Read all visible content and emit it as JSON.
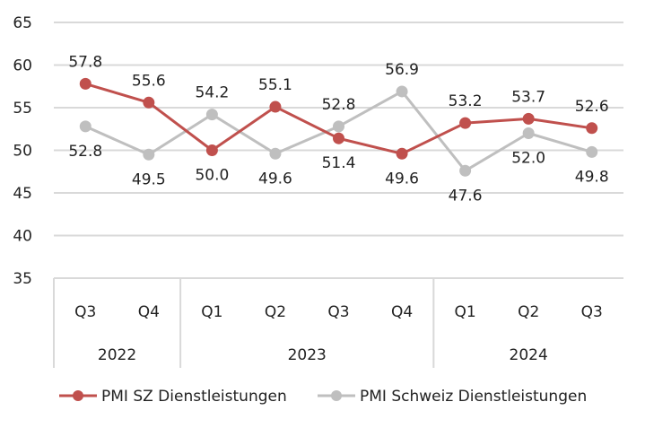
{
  "chart_data": {
    "type": "line",
    "title": "",
    "xlabel": "",
    "ylabel": "",
    "ylim": [
      35,
      65
    ],
    "yticks": [
      35,
      40,
      45,
      50,
      55,
      60,
      65
    ],
    "grid": true,
    "categories": [
      "Q3",
      "Q4",
      "Q1",
      "Q2",
      "Q3",
      "Q4",
      "Q1",
      "Q2",
      "Q3"
    ],
    "groups": [
      {
        "label": "2022",
        "count": 2
      },
      {
        "label": "2023",
        "count": 4
      },
      {
        "label": "2024",
        "count": 3
      }
    ],
    "series": [
      {
        "name": "PMI SZ Dienstleistungen",
        "color": "#c0504d",
        "values": [
          57.8,
          55.6,
          50.0,
          55.1,
          51.4,
          49.6,
          53.2,
          53.7,
          52.6
        ],
        "labels": [
          "57.8",
          "55.6",
          "50.0",
          "55.1",
          "51.4",
          "49.6",
          "53.2",
          "53.7",
          "52.6"
        ]
      },
      {
        "name": "PMI Schweiz Dienstleistungen",
        "color": "#bfbfbf",
        "values": [
          52.8,
          49.5,
          54.2,
          49.6,
          52.8,
          56.9,
          47.6,
          52.0,
          49.8
        ],
        "labels": [
          "52.8",
          "49.5",
          "54.2",
          "49.6",
          "52.8",
          "56.9",
          "47.6",
          "52.0",
          "49.8"
        ]
      }
    ],
    "legend": "bottom"
  }
}
